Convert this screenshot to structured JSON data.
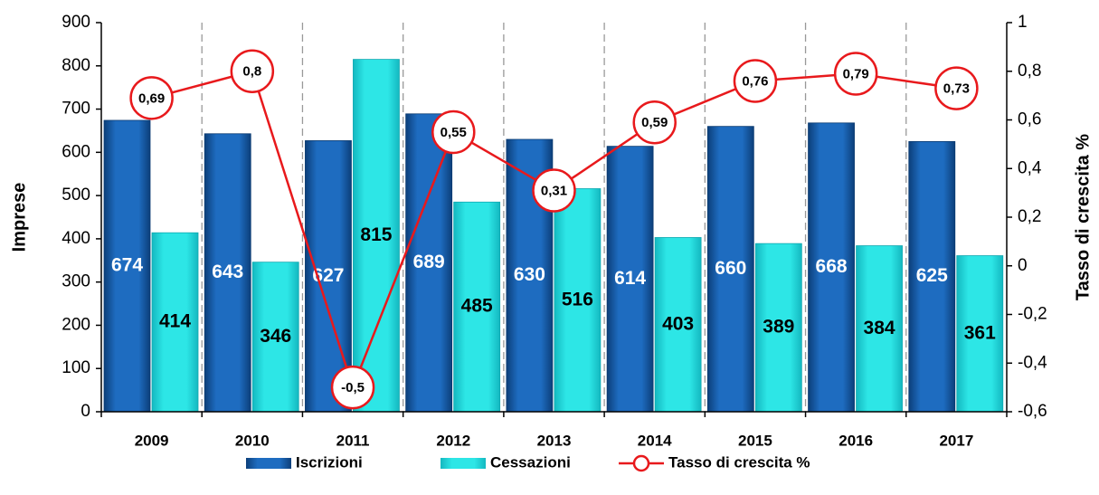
{
  "chart_data": {
    "type": "bar",
    "categories": [
      "2009",
      "2010",
      "2011",
      "2012",
      "2013",
      "2014",
      "2015",
      "2016",
      "2017"
    ],
    "series": [
      {
        "name": "Iscrizioni",
        "color": "#1e6cc0",
        "values": [
          674,
          643,
          627,
          689,
          630,
          614,
          660,
          668,
          625
        ]
      },
      {
        "name": "Cessazioni",
        "color": "#2de6e6",
        "values": [
          414,
          346,
          815,
          485,
          516,
          403,
          389,
          384,
          361
        ]
      },
      {
        "name": "Tasso di crescita %",
        "type": "line",
        "axis": "y2",
        "color": "#e8191c",
        "values": [
          0.69,
          0.8,
          -0.5,
          0.55,
          0.31,
          0.59,
          0.76,
          0.79,
          0.73
        ],
        "value_labels": [
          "0,69",
          "0,8",
          "-0,5",
          "0,55",
          "0,31",
          "0,59",
          "0,76",
          "0,79",
          "0,73"
        ]
      }
    ],
    "ylabel": "Imprese",
    "y2label": "Tasso di crescita %",
    "ylim": [
      0,
      900
    ],
    "yticks": [
      0,
      100,
      200,
      300,
      400,
      500,
      600,
      700,
      800,
      900
    ],
    "y2lim": [
      -0.6,
      1
    ],
    "y2ticks": [
      {
        "value": -0.6,
        "label": "-0,6"
      },
      {
        "value": -0.4,
        "label": "-0,4"
      },
      {
        "value": -0.2,
        "label": "-0,2"
      },
      0,
      {
        "value": 0.2,
        "label": "0,2"
      },
      {
        "value": 0.4,
        "label": "0,4"
      },
      {
        "value": 0.6,
        "label": "0,6"
      },
      {
        "value": 0.8,
        "label": "0,8"
      },
      1
    ],
    "legend": "bottom",
    "grid": "vertical-dashed"
  }
}
